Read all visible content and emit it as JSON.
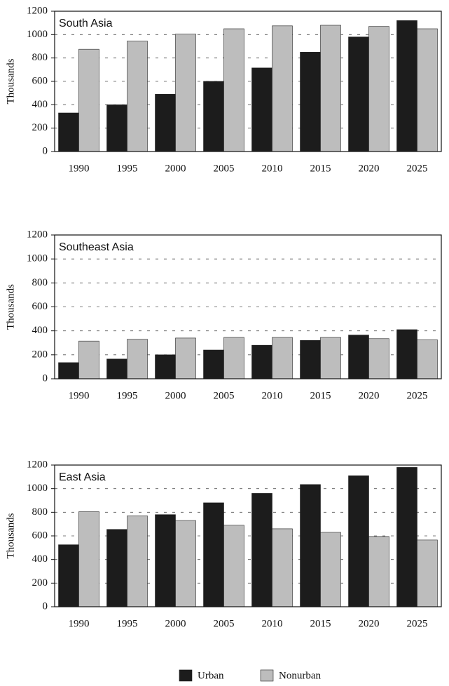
{
  "chart_data": [
    {
      "type": "bar",
      "title": "South Asia",
      "y_label": "Thousands",
      "categories": [
        "1990",
        "1995",
        "2000",
        "2005",
        "2010",
        "2015",
        "2020",
        "2025"
      ],
      "series": [
        {
          "name": "Urban",
          "color": "#1c1c1c",
          "values": [
            330,
            400,
            490,
            600,
            715,
            850,
            980,
            1120
          ]
        },
        {
          "name": "Nonurban",
          "color": "#bdbdbd",
          "values": [
            875,
            945,
            1005,
            1050,
            1075,
            1080,
            1070,
            1050
          ]
        }
      ],
      "ylim": [
        0,
        1200
      ],
      "yticks": [
        0,
        200,
        400,
        600,
        800,
        1000,
        1200
      ],
      "grid": true,
      "legend": "bottom"
    },
    {
      "type": "bar",
      "title": "Southeast Asia",
      "y_label": "Thousands",
      "categories": [
        "1990",
        "1995",
        "2000",
        "2005",
        "2010",
        "2015",
        "2020",
        "2025"
      ],
      "series": [
        {
          "name": "Urban",
          "color": "#1c1c1c",
          "values": [
            135,
            165,
            200,
            240,
            280,
            320,
            365,
            410
          ]
        },
        {
          "name": "Nonurban",
          "color": "#bdbdbd",
          "values": [
            315,
            330,
            340,
            345,
            345,
            345,
            335,
            325
          ]
        }
      ],
      "ylim": [
        0,
        1200
      ],
      "yticks": [
        0,
        200,
        400,
        600,
        800,
        1000,
        1200
      ],
      "grid": true
    },
    {
      "type": "bar",
      "title": "East Asia",
      "y_label": "Thousands",
      "categories": [
        "1990",
        "1995",
        "2000",
        "2005",
        "2010",
        "2015",
        "2020",
        "2025"
      ],
      "series": [
        {
          "name": "Urban",
          "color": "#1c1c1c",
          "values": [
            525,
            655,
            780,
            880,
            960,
            1035,
            1110,
            1180
          ]
        },
        {
          "name": "Nonurban",
          "color": "#bdbdbd",
          "values": [
            805,
            770,
            730,
            690,
            660,
            630,
            595,
            565
          ]
        }
      ],
      "ylim": [
        0,
        1200
      ],
      "yticks": [
        0,
        200,
        400,
        600,
        800,
        1000,
        1200
      ],
      "grid": true
    }
  ]
}
